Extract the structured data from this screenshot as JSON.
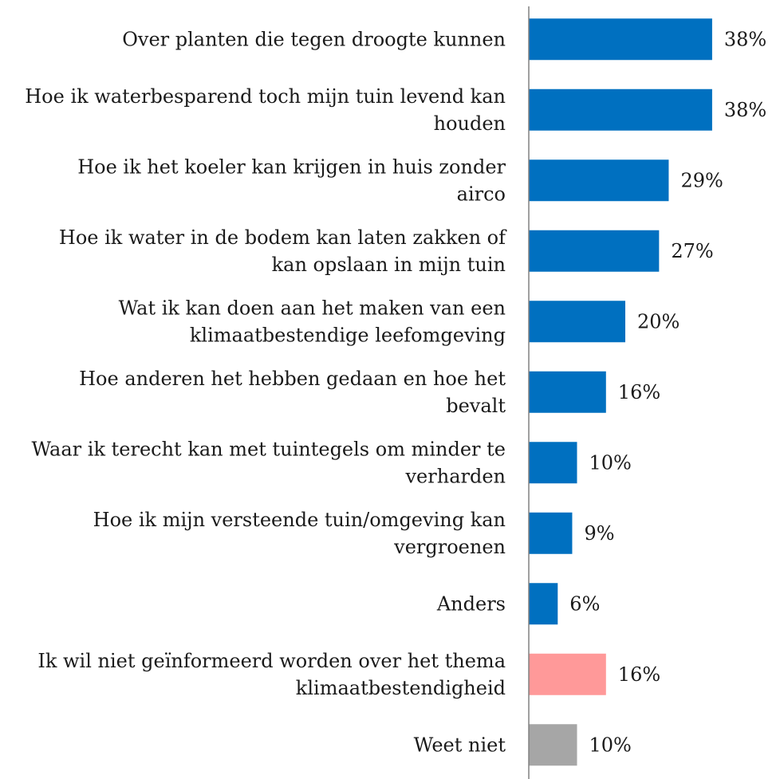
{
  "chart_data": {
    "type": "bar",
    "orientation": "horizontal",
    "grid": false,
    "xlim": [
      0,
      40
    ],
    "categories": [
      "Over planten die tegen droogte kunnen",
      "Hoe ik waterbesparend toch mijn tuin levend kan houden",
      "Hoe ik het koeler kan krijgen in huis zonder airco",
      "Hoe ik water in de bodem kan laten zakken of kan opslaan in mijn tuin",
      "Wat ik kan doen aan het maken van een klimaatbestendige leefomgeving",
      "Hoe anderen het hebben gedaan en hoe het bevalt",
      "Waar ik terecht kan met tuintegels om minder te verharden",
      "Hoe ik mijn versteende tuin/omgeving kan vergroenen",
      "Anders",
      "Ik wil niet geïnformeerd worden over het thema klimaatbestendigheid",
      "Weet niet"
    ],
    "category_lines": [
      [
        "Over planten die tegen droogte kunnen"
      ],
      [
        "Hoe ik waterbesparend toch mijn tuin levend kan",
        "houden"
      ],
      [
        "Hoe ik het koeler kan krijgen in huis zonder",
        "airco"
      ],
      [
        "Hoe ik water in de bodem kan laten zakken of",
        "kan opslaan in mijn tuin"
      ],
      [
        "Wat ik kan doen aan het maken van een",
        "klimaatbestendige leefomgeving"
      ],
      [
        "Hoe anderen het hebben gedaan en hoe het",
        "bevalt"
      ],
      [
        "Waar ik terecht kan met tuintegels om minder te",
        "verharden"
      ],
      [
        "Hoe ik mijn versteende tuin/omgeving kan",
        "vergroenen"
      ],
      [
        "Anders"
      ],
      [
        "Ik wil niet geïnformeerd worden over het thema",
        "klimaatbestendigheid"
      ],
      [
        "Weet niet"
      ]
    ],
    "values": [
      38,
      38,
      29,
      27,
      20,
      16,
      10,
      9,
      6,
      16,
      10
    ],
    "value_labels": [
      "38%",
      "38%",
      "29%",
      "27%",
      "20%",
      "16%",
      "10%",
      "9%",
      "6%",
      "16%",
      "10%"
    ],
    "bar_colors": [
      "#0070C0",
      "#0070C0",
      "#0070C0",
      "#0070C0",
      "#0070C0",
      "#0070C0",
      "#0070C0",
      "#0070C0",
      "#0070C0",
      "#FF9999",
      "#A6A6A6"
    ],
    "axis_color": "#808080",
    "text_color": "#1a1a1a"
  }
}
